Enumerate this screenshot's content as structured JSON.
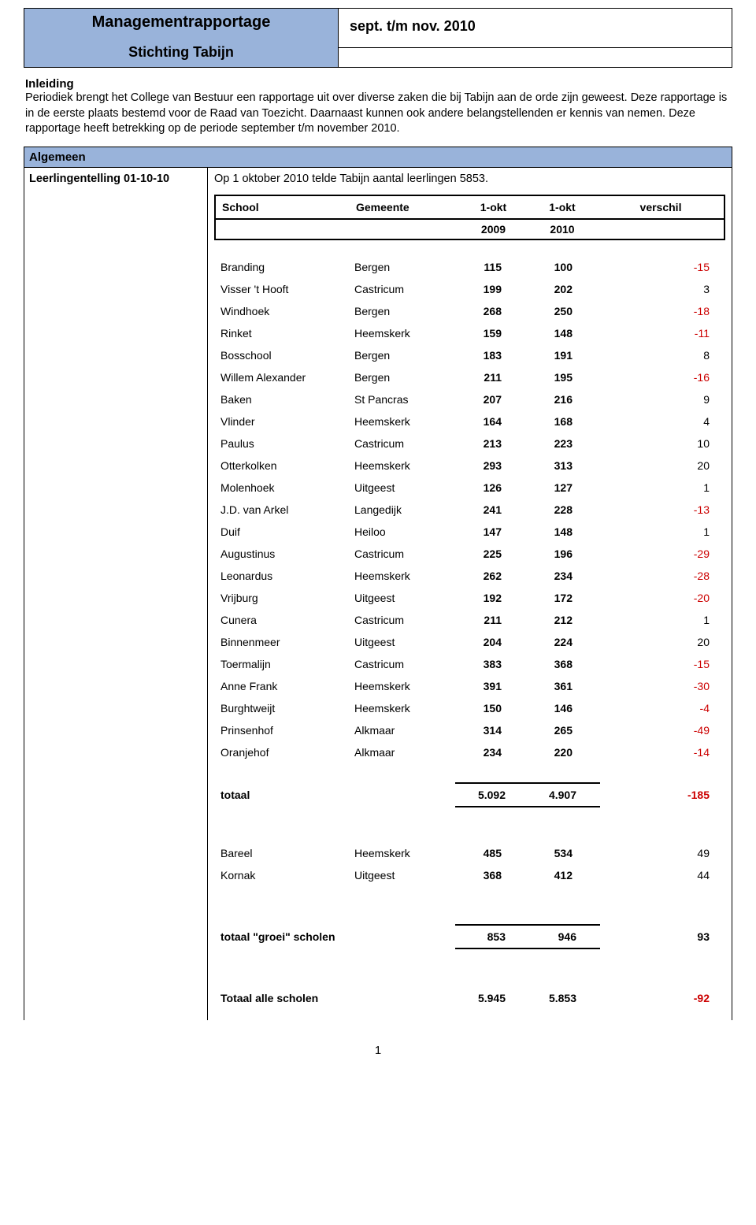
{
  "header": {
    "title": "Managementrapportage",
    "subtitle": "Stichting Tabijn",
    "period": "sept. t/m nov. 2010"
  },
  "intro": {
    "heading": "Inleiding",
    "text": "Periodiek brengt het College van Bestuur een rapportage uit over diverse zaken die bij Tabijn aan de orde zijn geweest. Deze rapportage is in de eerste plaats bestemd voor de Raad van Toezicht. Daarnaast kunnen ook andere belangstellenden er kennis van nemen. Deze rapportage heeft betrekking op de periode september t/m november 2010."
  },
  "section": {
    "bar": "Algemeen",
    "row_label": "Leerlingentelling 01-10-10",
    "row_text": "Op 1 oktober 2010 telde Tabijn  aantal leerlingen 5853."
  },
  "table": {
    "headers": {
      "school": "School",
      "gemeente": "Gemeente",
      "col1": "1-okt",
      "col2": "1-okt",
      "diff": "verschil",
      "sub1": "2009",
      "sub2": "2010"
    },
    "rows": [
      {
        "school": "Branding",
        "gemeente": "Bergen",
        "v2009": "115",
        "v2010": "100",
        "diff": "-15",
        "neg": true
      },
      {
        "school": "Visser 't Hooft",
        "gemeente": "Castricum",
        "v2009": "199",
        "v2010": "202",
        "diff": "3",
        "neg": false
      },
      {
        "school": "Windhoek",
        "gemeente": "Bergen",
        "v2009": "268",
        "v2010": "250",
        "diff": "-18",
        "neg": true
      },
      {
        "school": "Rinket",
        "gemeente": "Heemskerk",
        "v2009": "159",
        "v2010": "148",
        "diff": "-11",
        "neg": true
      },
      {
        "school": "Bosschool",
        "gemeente": "Bergen",
        "v2009": "183",
        "v2010": "191",
        "diff": "8",
        "neg": false
      },
      {
        "school": "Willem Alexander",
        "gemeente": "Bergen",
        "v2009": "211",
        "v2010": "195",
        "diff": "-16",
        "neg": true
      },
      {
        "school": "Baken",
        "gemeente": "St Pancras",
        "v2009": "207",
        "v2010": "216",
        "diff": "9",
        "neg": false
      },
      {
        "school": "Vlinder",
        "gemeente": "Heemskerk",
        "v2009": "164",
        "v2010": "168",
        "diff": "4",
        "neg": false
      },
      {
        "school": "Paulus",
        "gemeente": "Castricum",
        "v2009": "213",
        "v2010": "223",
        "diff": "10",
        "neg": false
      },
      {
        "school": "Otterkolken",
        "gemeente": "Heemskerk",
        "v2009": "293",
        "v2010": "313",
        "diff": "20",
        "neg": false
      },
      {
        "school": "Molenhoek",
        "gemeente": "Uitgeest",
        "v2009": "126",
        "v2010": "127",
        "diff": "1",
        "neg": false
      },
      {
        "school": "J.D. van Arkel",
        "gemeente": "Langedijk",
        "v2009": "241",
        "v2010": "228",
        "diff": "-13",
        "neg": true
      },
      {
        "school": "Duif",
        "gemeente": "Heiloo",
        "v2009": "147",
        "v2010": "148",
        "diff": "1",
        "neg": false
      },
      {
        "school": "Augustinus",
        "gemeente": "Castricum",
        "v2009": "225",
        "v2010": "196",
        "diff": "-29",
        "neg": true
      },
      {
        "school": "Leonardus",
        "gemeente": "Heemskerk",
        "v2009": "262",
        "v2010": "234",
        "diff": "-28",
        "neg": true
      },
      {
        "school": "Vrijburg",
        "gemeente": "Uitgeest",
        "v2009": "192",
        "v2010": "172",
        "diff": "-20",
        "neg": true
      },
      {
        "school": "Cunera",
        "gemeente": "Castricum",
        "v2009": "211",
        "v2010": "212",
        "diff": "1",
        "neg": false
      },
      {
        "school": "Binnenmeer",
        "gemeente": "Uitgeest",
        "v2009": "204",
        "v2010": "224",
        "diff": "20",
        "neg": false
      },
      {
        "school": "Toermalijn",
        "gemeente": "Castricum",
        "v2009": "383",
        "v2010": "368",
        "diff": "-15",
        "neg": true
      },
      {
        "school": "Anne Frank",
        "gemeente": "Heemskerk",
        "v2009": "391",
        "v2010": "361",
        "diff": "-30",
        "neg": true
      },
      {
        "school": "Burghtweijt",
        "gemeente": "Heemskerk",
        "v2009": "150",
        "v2010": "146",
        "diff": "-4",
        "neg": true
      },
      {
        "school": "Prinsenhof",
        "gemeente": "Alkmaar",
        "v2009": "314",
        "v2010": "265",
        "diff": "-49",
        "neg": true
      },
      {
        "school": "Oranjehof",
        "gemeente": "Alkmaar",
        "v2009": "234",
        "v2010": "220",
        "diff": "-14",
        "neg": true
      }
    ],
    "subtotal": {
      "label": "totaal",
      "v2009": "5.092",
      "v2010": "4.907",
      "diff": "-185",
      "neg": true
    },
    "growth_rows": [
      {
        "school": "Bareel",
        "gemeente": "Heemskerk",
        "v2009": "485",
        "v2010": "534",
        "diff": "49",
        "neg": false
      },
      {
        "school": "Kornak",
        "gemeente": "Uitgeest",
        "v2009": "368",
        "v2010": "412",
        "diff": "44",
        "neg": false
      }
    ],
    "growth_total": {
      "label": "totaal \"groei\" scholen",
      "v2009": "853",
      "v2010": "946",
      "diff": "93",
      "neg": false
    },
    "grand_total": {
      "label": "Totaal alle scholen",
      "v2009": "5.945",
      "v2010": "5.853",
      "diff": "-92",
      "neg": true
    }
  },
  "page_number": "1",
  "colors": {
    "header_bg": "#99b3da",
    "border": "#000000",
    "negative": "#cc0000",
    "text": "#000000",
    "background": "#ffffff"
  }
}
